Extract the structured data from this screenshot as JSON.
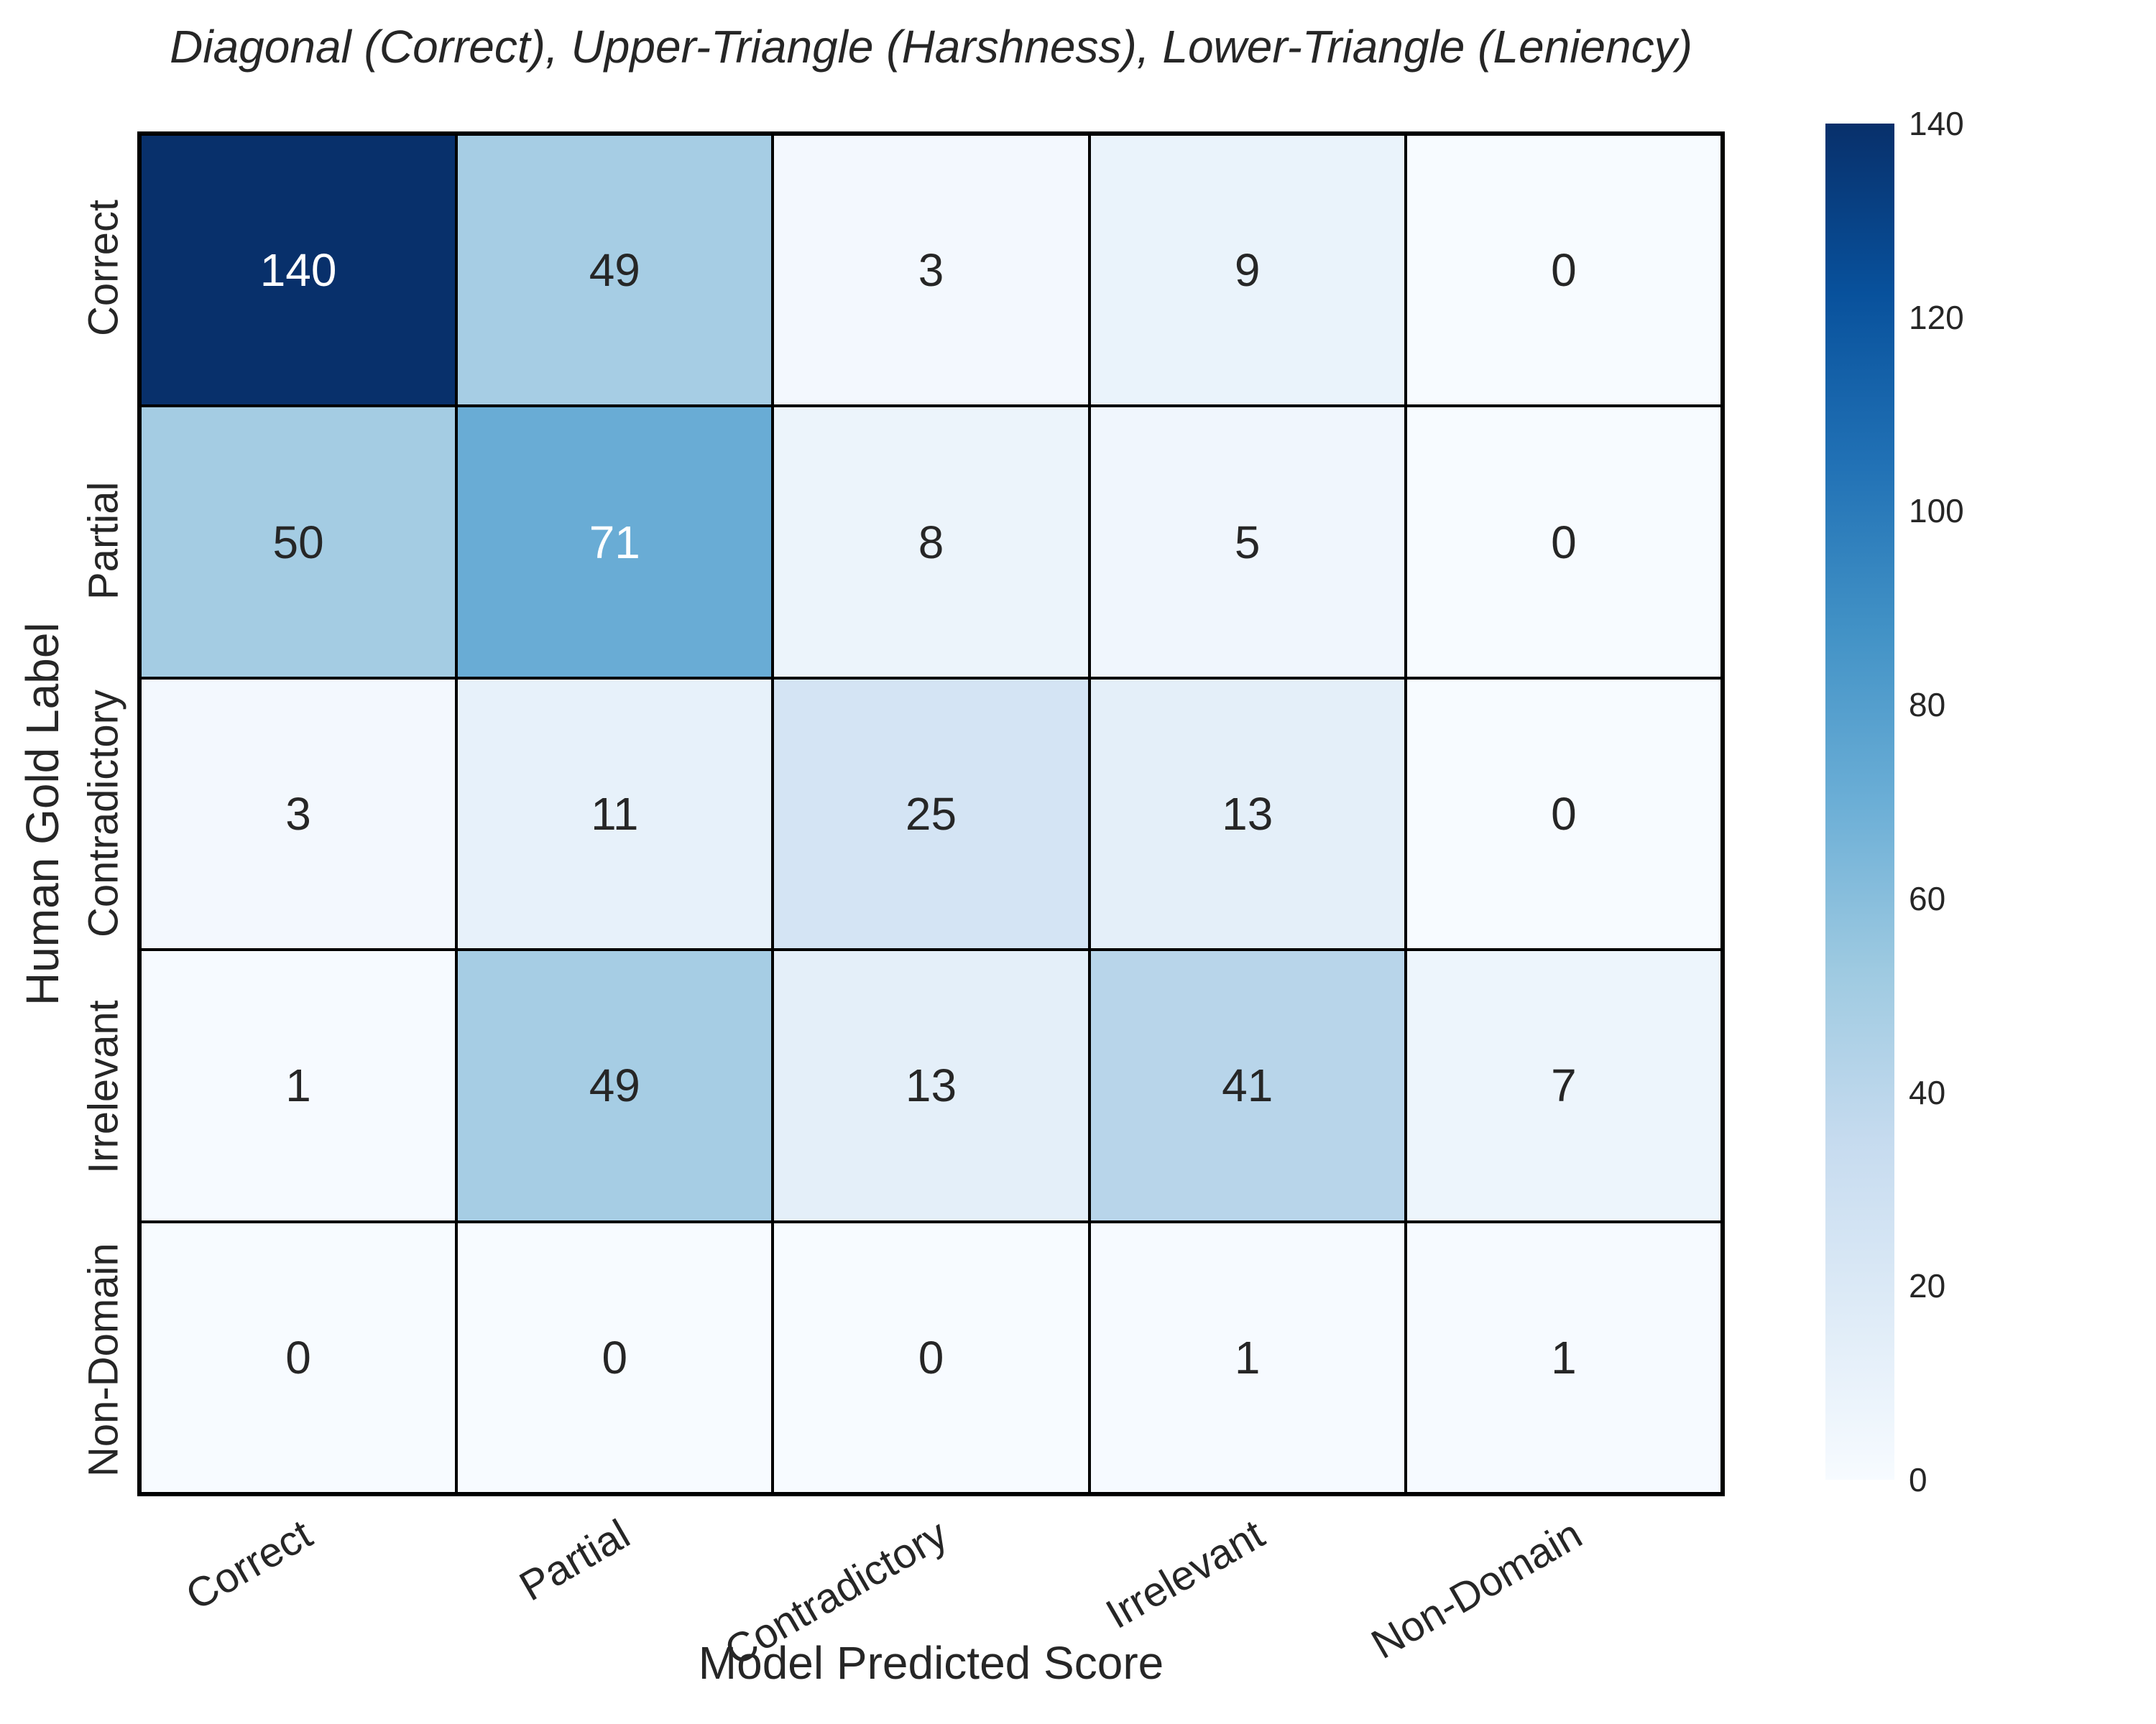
{
  "chart_data": {
    "type": "heatmap",
    "title": "Diagonal (Correct), Upper-Triangle (Harshness), Lower-Triangle (Leniency)",
    "xlabel": "Model Predicted Score",
    "ylabel": "Human Gold Label",
    "x_categories": [
      "Correct",
      "Partial",
      "Contradictory",
      "Irrelevant",
      "Non-Domain"
    ],
    "y_categories": [
      "Correct",
      "Partial",
      "Contradictory",
      "Irrelevant",
      "Non-Domain"
    ],
    "values": [
      [
        140,
        49,
        3,
        9,
        0
      ],
      [
        50,
        71,
        8,
        5,
        0
      ],
      [
        3,
        11,
        25,
        13,
        0
      ],
      [
        1,
        49,
        13,
        41,
        7
      ],
      [
        0,
        0,
        0,
        1,
        1
      ]
    ],
    "vmin": 0,
    "vmax": 140,
    "colormap_name": "Blues",
    "colormap_stops": [
      {
        "t": 0.0,
        "color": [
          247,
          251,
          255
        ]
      },
      {
        "t": 0.125,
        "color": [
          222,
          235,
          247
        ]
      },
      {
        "t": 0.25,
        "color": [
          198,
          219,
          239
        ]
      },
      {
        "t": 0.375,
        "color": [
          158,
          202,
          225
        ]
      },
      {
        "t": 0.5,
        "color": [
          107,
          174,
          214
        ]
      },
      {
        "t": 0.625,
        "color": [
          66,
          146,
          198
        ]
      },
      {
        "t": 0.75,
        "color": [
          33,
          113,
          181
        ]
      },
      {
        "t": 0.875,
        "color": [
          8,
          81,
          156
        ]
      },
      {
        "t": 1.0,
        "color": [
          8,
          48,
          107
        ]
      }
    ],
    "colorbar_ticks": [
      "0",
      "20",
      "40",
      "60",
      "80",
      "100",
      "120",
      "140"
    ],
    "annotation_color_dark": "#262626",
    "annotation_color_light": "#ffffff",
    "grid_line_color": "#000000",
    "legend_position": "right",
    "grid": "off",
    "xtick_rotation_deg": 30
  }
}
